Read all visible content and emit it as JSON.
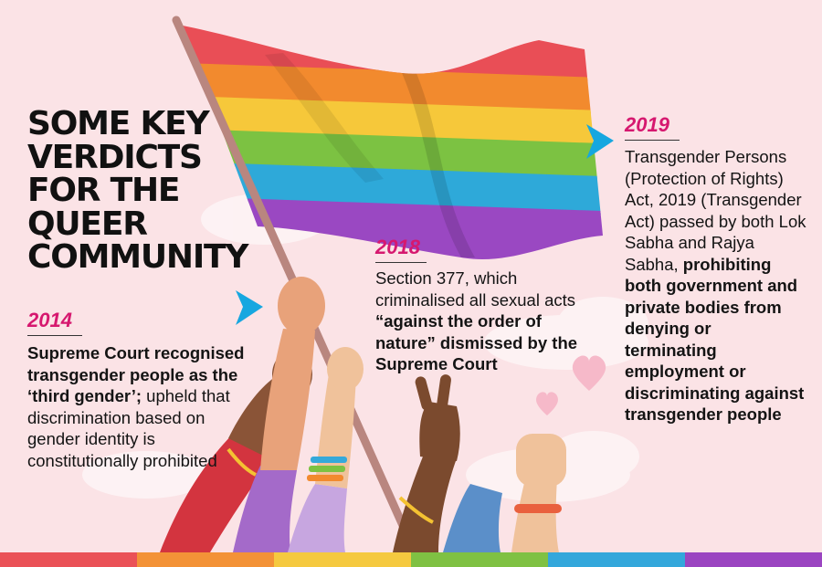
{
  "title_lines": [
    "SOME KEY",
    "VERDICTS",
    "FOR THE",
    "QUEER",
    "COMMUNITY"
  ],
  "entries": [
    {
      "year": "2014",
      "bold_text": "Supreme Court recognised transgender people as the ‘third gender’;",
      "text": " upheld that discrimination based on gender identity is constitutionally prohibited"
    },
    {
      "year": "2018",
      "text_a": "Section 377, which criminalised all sexual acts ",
      "bold_text": "“against the order of nature” dismissed by the Supreme Court"
    },
    {
      "year": "2019",
      "text": "Transgender Persons (Protection of Rights) Act, 2019 (Transgender Act) passed by both Lok Sabha and Rajya Sabha, ",
      "bold_text": "prohibiting both government and private bodies from denying or terminating employment or discriminating against transgender people"
    }
  ],
  "colors": {
    "background": "#fbe3e6",
    "year_accent": "#d6186f",
    "arrow": "#16a7e0",
    "flag": [
      "#e94e56",
      "#f28a2e",
      "#f6c83a",
      "#7cc242",
      "#2ea9d9",
      "#9a48c2"
    ],
    "bottom_stripes": [
      "#ea5157",
      "#f39237",
      "#f5c93f",
      "#7fc143",
      "#33a7db",
      "#9b45c1"
    ]
  }
}
